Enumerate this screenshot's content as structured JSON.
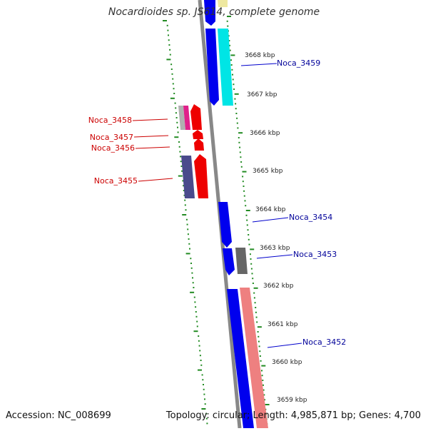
{
  "title": "Nocardioides sp. JS614, complete genome",
  "footer": {
    "accession": "Accession: NC_008699",
    "summary": "Topology: circular; Length: 4,985,871 bp; Genes: 4,700"
  },
  "colors": {
    "backbone": "#888888",
    "tick": "#228b22",
    "forward_label": "#000099",
    "reverse_label": "#cc0000",
    "blue_gene": "#0000ee",
    "red_gene": "#ee0000",
    "cyan_gene": "#00e5e5",
    "salmon_gene": "#ee8080",
    "navy_gene": "#4a4a8c",
    "grey_gene": "#666666",
    "magenta_gene": "#e0208a",
    "silver_gene": "#b0b0b0",
    "yellow_gene": "#eee8a0"
  },
  "scale": {
    "unit": "kbp",
    "ticks": [
      "3668 kbp",
      "3667 kbp",
      "3666 kbp",
      "3665 kbp",
      "3664 kbp",
      "3663 kbp",
      "3662 kbp",
      "3661 kbp",
      "3660 kbp",
      "3659 kbp"
    ]
  },
  "genes": {
    "forward": [
      {
        "label": "Noca_3459",
        "color_key": "cyan_gene"
      },
      {
        "label": "Noca_3454",
        "color_key": "blue_gene"
      },
      {
        "label": "Noca_3453",
        "color_key": "grey_gene"
      },
      {
        "label": "Noca_3452",
        "color_key": "salmon_gene"
      }
    ],
    "reverse": [
      {
        "label": "Noca_3458",
        "color_key": "red_gene"
      },
      {
        "label": "Noca_3457",
        "color_key": "red_gene"
      },
      {
        "label": "Noca_3456",
        "color_key": "red_gene"
      },
      {
        "label": "Noca_3455",
        "color_key": "red_gene"
      }
    ]
  }
}
